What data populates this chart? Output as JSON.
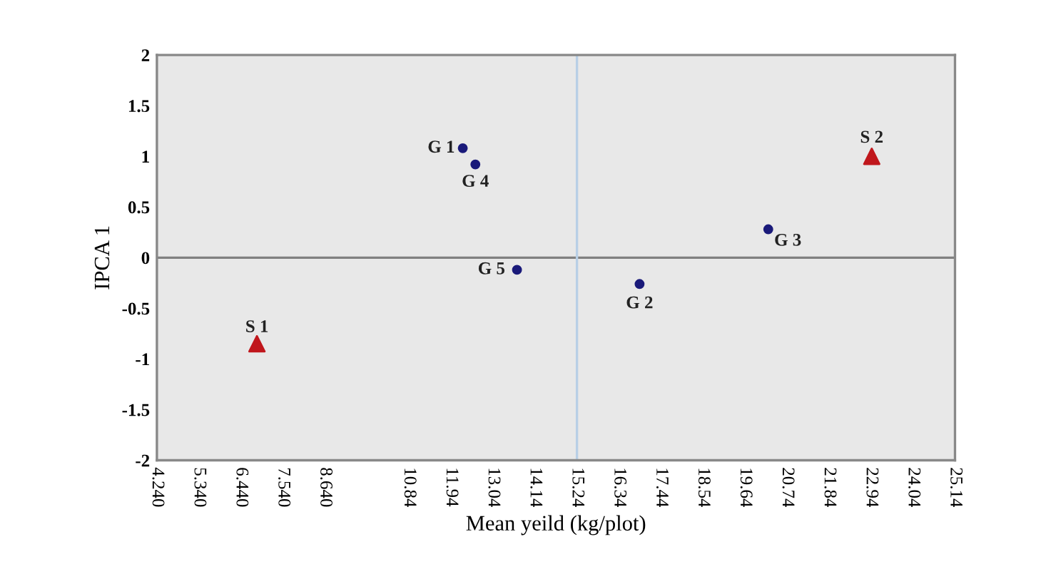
{
  "chart_data": {
    "type": "scatter",
    "xlabel": "Mean yeild (kg/plot)",
    "ylabel": "IPCA 1",
    "series": [
      {
        "color": "#1a1a7a",
        "marker": "circle",
        "x": [
          12.25,
          16.88,
          20.25,
          12.58,
          13.67
        ],
        "values": [
          1.08,
          -0.26,
          0.28,
          0.92,
          -0.12
        ]
      },
      {
        "color": "#c0171c",
        "marker": "triangle",
        "x": [
          6.86,
          22.96
        ],
        "values": [
          -0.85,
          1.0
        ]
      }
    ],
    "annotations": [
      {
        "text": "G 1",
        "x": 12.25,
        "y": 1.08
      },
      {
        "text": "G 2",
        "x": 16.88,
        "y": -0.26
      },
      {
        "text": "G 3",
        "x": 20.25,
        "y": 0.28
      },
      {
        "text": "G 4",
        "x": 12.58,
        "y": 0.92
      },
      {
        "text": "G 5",
        "x": 13.67,
        "y": -0.12
      },
      {
        "text": "S 1",
        "x": 6.86,
        "y": -0.85
      },
      {
        "text": "S 2",
        "x": 22.96,
        "y": 1.0
      }
    ],
    "ref_lines": [
      {
        "axis": "y",
        "value": 0,
        "color": "#808080"
      },
      {
        "axis": "x",
        "value": 15.24,
        "color": "#b8cfe6"
      }
    ],
    "xlim": [
      4.24,
      25.14
    ],
    "ylim": [
      -2,
      2
    ],
    "xticks": [
      {
        "value": 4.24,
        "label": "4.240"
      },
      {
        "value": 5.34,
        "label": "5.340"
      },
      {
        "value": 6.44,
        "label": "6.440"
      },
      {
        "value": 7.54,
        "label": "7.540"
      },
      {
        "value": 8.64,
        "label": "8.640"
      },
      10.84,
      11.94,
      13.04,
      14.14,
      15.24,
      16.34,
      17.44,
      18.54,
      19.64,
      20.74,
      21.84,
      22.94,
      24.04,
      25.14
    ],
    "yticks": [
      2,
      1.5,
      1,
      0.5,
      0,
      -0.5,
      -1,
      -1.5,
      -2
    ],
    "grid": false,
    "legend": false
  }
}
